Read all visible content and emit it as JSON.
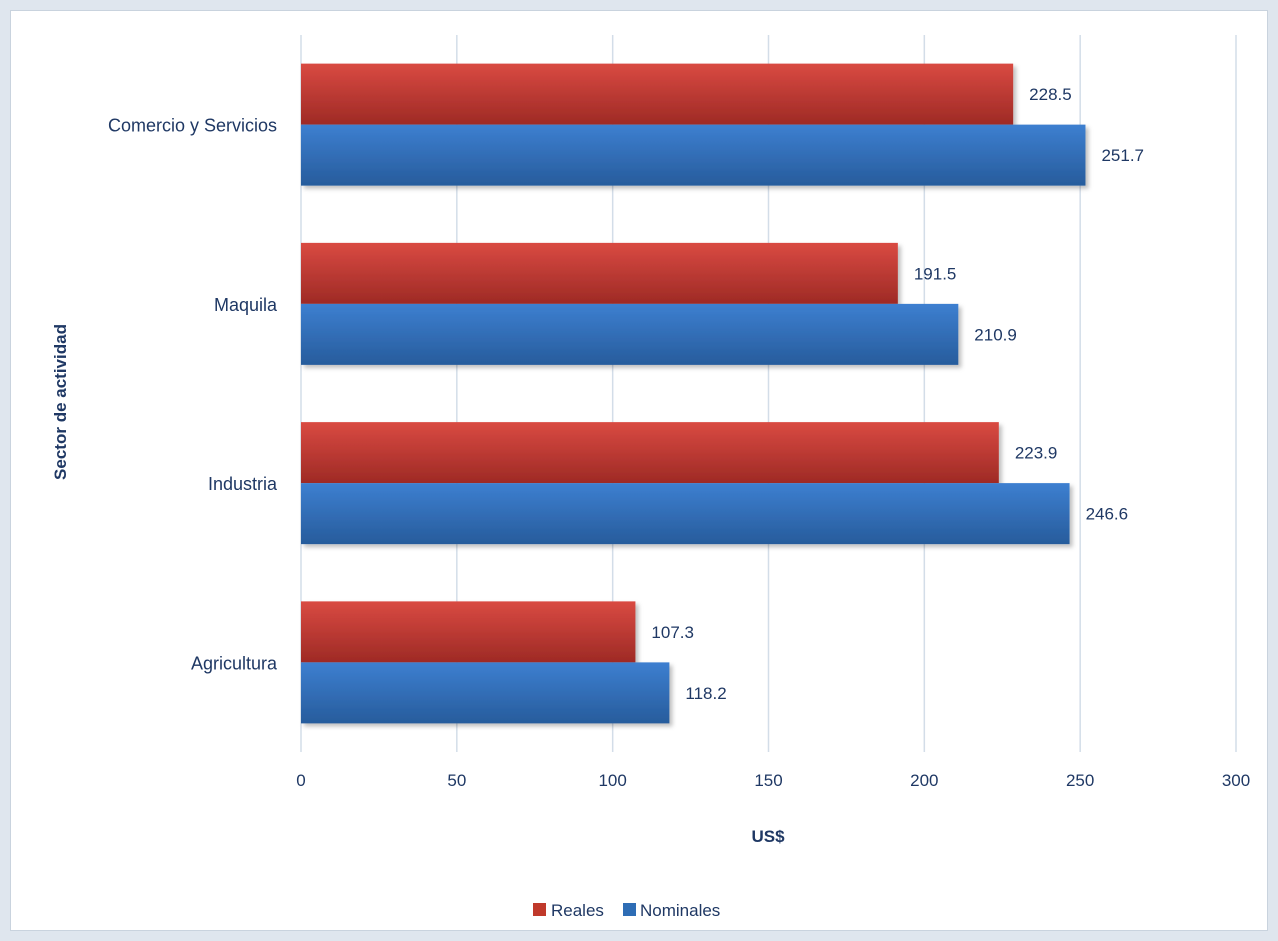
{
  "chart_data": {
    "type": "bar",
    "orientation": "horizontal",
    "categories": [
      "Agricultura",
      "Industria",
      "Maquila",
      "Comercio y Servicios"
    ],
    "series": [
      {
        "name": "Reales",
        "values": [
          107.3,
          223.9,
          191.5,
          228.5
        ],
        "color": "#c0392b"
      },
      {
        "name": "Nominales",
        "values": [
          118.2,
          246.6,
          210.9,
          251.7
        ],
        "color": "#2e6db5"
      }
    ],
    "data_labels": {
      "Reales": [
        "107.3",
        "223.9",
        "191.5",
        "228.5"
      ],
      "Nominales": [
        "118.2",
        "246.6",
        "210.9",
        "251.7"
      ]
    },
    "xlabel": "US$",
    "ylabel": "Sector de actividad",
    "xlim": [
      0,
      300
    ],
    "xticks": [
      0,
      50,
      100,
      150,
      200,
      250,
      300
    ],
    "xtick_labels": [
      "0",
      "50",
      "100",
      "150",
      "200",
      "250",
      "300"
    ],
    "grid": "vertical",
    "legend_position": "bottom"
  },
  "colors": {
    "grid": "#d3dde8",
    "text": "#1f3864"
  }
}
